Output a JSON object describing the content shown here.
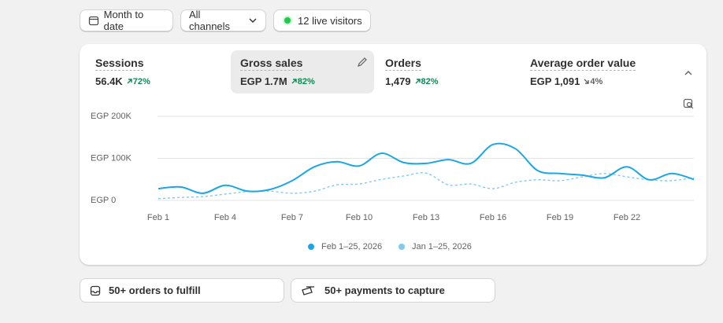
{
  "toolbar": {
    "date_range": "Month to date",
    "channels": "All channels",
    "live_visitors": "12 live visitors"
  },
  "metrics": [
    {
      "label": "Sessions",
      "value": "56.4K",
      "change": "72%"
    },
    {
      "label": "Gross sales",
      "value": "EGP 1.7M",
      "change": "82%"
    },
    {
      "label": "Orders",
      "value": "1,479",
      "change": "82%"
    },
    {
      "label": "Average order value",
      "value": "EGP 1,091",
      "change": "4%"
    }
  ],
  "chart_data": {
    "type": "line",
    "categories": [
      "Feb 1",
      null,
      null,
      "Feb 4",
      null,
      null,
      "Feb 7",
      null,
      null,
      "Feb 10",
      null,
      null,
      "Feb 13",
      null,
      null,
      "Feb 16",
      null,
      null,
      "Feb 19",
      null,
      null,
      "Feb 22",
      null,
      null,
      null
    ],
    "series": [
      {
        "name": "Feb 1–25, 2026",
        "color": "#1ba6e6",
        "values": [
          28000,
          32000,
          17000,
          36000,
          22000,
          26000,
          47000,
          80000,
          92000,
          82000,
          112000,
          90000,
          88000,
          97000,
          88000,
          133000,
          123000,
          71000,
          64000,
          60000,
          54000,
          80000,
          49000,
          64000,
          50000
        ]
      },
      {
        "name": "Jan 1–25, 2026",
        "color": "#7fcbee",
        "dashed": true,
        "values": [
          4000,
          7000,
          9000,
          15000,
          21000,
          22000,
          17000,
          22000,
          37000,
          39000,
          50000,
          58000,
          65000,
          37000,
          39000,
          28000,
          43000,
          49000,
          47000,
          56000,
          64000,
          56000,
          49000,
          47000,
          54000
        ]
      }
    ],
    "ylim": [
      0,
      200000
    ],
    "yticks": [
      {
        "value": 0,
        "label": "EGP 0"
      },
      {
        "value": 100000,
        "label": "EGP 100K"
      },
      {
        "value": 200000,
        "label": "EGP 200K"
      }
    ],
    "grid": true
  },
  "tasks": [
    "50+ orders to fulfill",
    "50+ payments to capture"
  ]
}
